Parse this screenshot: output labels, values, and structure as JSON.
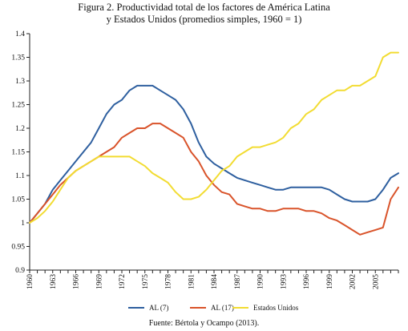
{
  "title_line1": "Figura 2. Productividad total de los factores de América Latina",
  "title_line2": "y Estados Unidos (promedios simples, 1960 = 1)",
  "source": "Fuente: Bértola y Ocampo (2013).",
  "chart_data": {
    "type": "line",
    "title": "Figura 2. Productividad total de los factores de América Latina y Estados Unidos (promedios simples, 1960 = 1)",
    "xlabel": "",
    "ylabel": "",
    "x": [
      1960,
      1961,
      1962,
      1963,
      1964,
      1965,
      1966,
      1967,
      1968,
      1969,
      1970,
      1971,
      1972,
      1973,
      1974,
      1975,
      1976,
      1977,
      1978,
      1979,
      1980,
      1981,
      1982,
      1983,
      1984,
      1985,
      1986,
      1987,
      1988,
      1989,
      1990,
      1991,
      1992,
      1993,
      1994,
      1995,
      1996,
      1997,
      1998,
      1999,
      2000,
      2001,
      2002,
      2003,
      2004,
      2005,
      2006,
      2007,
      2008
    ],
    "x_tick_labels": [
      "1960",
      "1963",
      "1966",
      "1969",
      "1972",
      "1975",
      "1978",
      "1981",
      "1984",
      "1987",
      "1990",
      "1993",
      "1996",
      "1999",
      "2002",
      "2005"
    ],
    "y_tick_labels": [
      "0.9",
      "0.95",
      "1",
      "1.05",
      "1.1",
      "1.15",
      "1.2",
      "1.25",
      "1.3",
      "1.35",
      "1.4"
    ],
    "ylim": [
      0.9,
      1.4
    ],
    "grid": false,
    "legend_position": "bottom",
    "series": [
      {
        "name": "AL (7)",
        "color": "#2e5f9f",
        "values": [
          1.0,
          1.02,
          1.04,
          1.07,
          1.09,
          1.11,
          1.13,
          1.15,
          1.17,
          1.2,
          1.23,
          1.25,
          1.26,
          1.28,
          1.29,
          1.29,
          1.29,
          1.28,
          1.27,
          1.26,
          1.24,
          1.21,
          1.17,
          1.14,
          1.125,
          1.115,
          1.105,
          1.095,
          1.09,
          1.085,
          1.08,
          1.075,
          1.07,
          1.07,
          1.075,
          1.075,
          1.075,
          1.075,
          1.075,
          1.07,
          1.06,
          1.05,
          1.045,
          1.045,
          1.045,
          1.05,
          1.07,
          1.095,
          1.105
        ]
      },
      {
        "name": "AL (17)",
        "color": "#d9532a",
        "values": [
          1.0,
          1.02,
          1.04,
          1.06,
          1.08,
          1.095,
          1.11,
          1.12,
          1.13,
          1.14,
          1.15,
          1.16,
          1.18,
          1.19,
          1.2,
          1.2,
          1.21,
          1.21,
          1.2,
          1.19,
          1.18,
          1.15,
          1.13,
          1.1,
          1.08,
          1.065,
          1.06,
          1.04,
          1.035,
          1.03,
          1.03,
          1.025,
          1.025,
          1.03,
          1.03,
          1.03,
          1.025,
          1.025,
          1.02,
          1.01,
          1.005,
          0.995,
          0.985,
          0.975,
          0.98,
          0.985,
          0.99,
          1.05,
          1.075
        ]
      },
      {
        "name": "Estados Unidos",
        "color": "#f2dc32",
        "values": [
          1.0,
          1.01,
          1.025,
          1.045,
          1.07,
          1.095,
          1.11,
          1.12,
          1.13,
          1.14,
          1.14,
          1.14,
          1.14,
          1.14,
          1.13,
          1.12,
          1.105,
          1.095,
          1.085,
          1.065,
          1.05,
          1.05,
          1.055,
          1.07,
          1.09,
          1.11,
          1.12,
          1.14,
          1.15,
          1.16,
          1.16,
          1.165,
          1.17,
          1.18,
          1.2,
          1.21,
          1.23,
          1.24,
          1.26,
          1.27,
          1.28,
          1.28,
          1.29,
          1.29,
          1.3,
          1.31,
          1.35,
          1.36,
          1.36
        ]
      }
    ]
  }
}
